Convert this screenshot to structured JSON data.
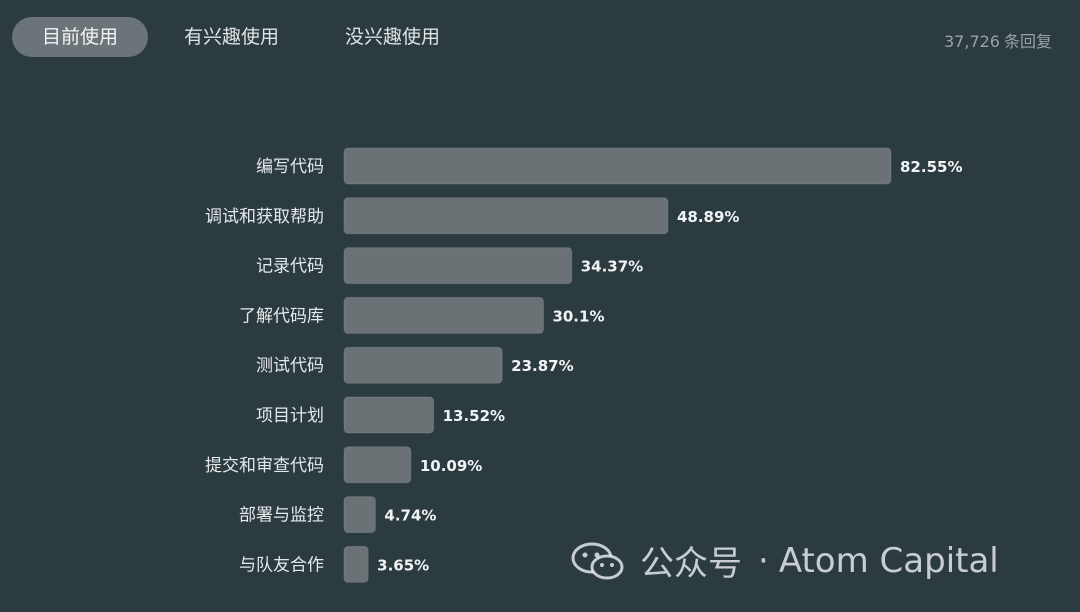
{
  "tabs": [
    {
      "label": "目前使用",
      "active": true
    },
    {
      "label": "有兴趣使用",
      "active": false
    },
    {
      "label": "没兴趣使用",
      "active": false
    }
  ],
  "reply_count": {
    "count": "37,726",
    "label": "条回复"
  },
  "watermark": {
    "prefix": "公众号",
    "separator": "·",
    "name": "Atom Capital"
  },
  "colors": {
    "background": "#2b3b40",
    "bar": "#6b7275",
    "active_tab": "#6b7478"
  },
  "chart_data": {
    "type": "bar",
    "orientation": "horizontal",
    "categories": [
      "编写代码",
      "调试和获取帮助",
      "记录代码",
      "了解代码库",
      "测试代码",
      "项目计划",
      "提交和审查代码",
      "部署与监控",
      "与队友合作"
    ],
    "values": [
      82.55,
      48.89,
      34.37,
      30.1,
      23.87,
      13.52,
      10.09,
      4.74,
      3.65
    ],
    "value_labels": [
      "82.55%",
      "48.89%",
      "34.37%",
      "30.1%",
      "23.87%",
      "13.52%",
      "10.09%",
      "4.74%",
      "3.65%"
    ],
    "unit": "%",
    "xlim": [
      0,
      82.55
    ],
    "grid": false,
    "legend": "none"
  }
}
